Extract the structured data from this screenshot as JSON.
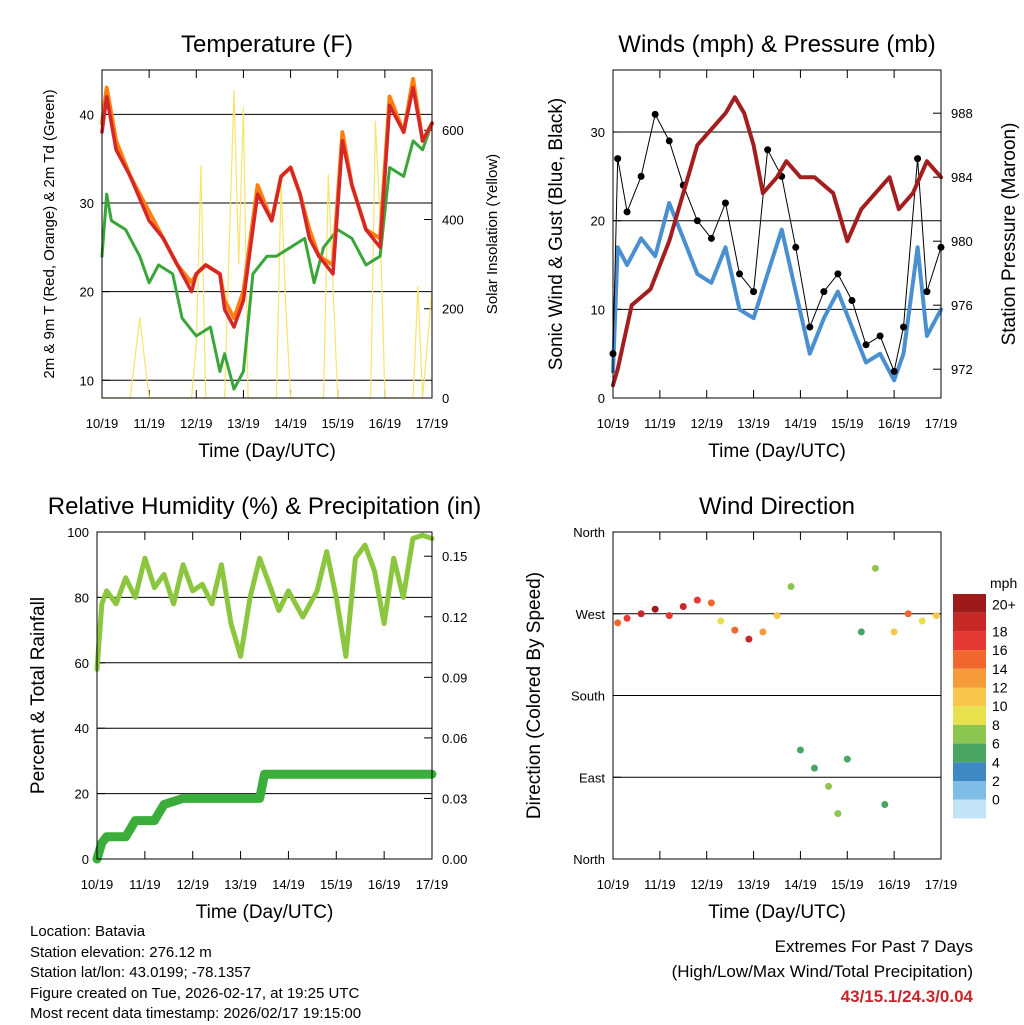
{
  "chart_data": [
    {
      "type": "line",
      "title": "Temperature (F)",
      "xlabel": "Time (Day/UTC)",
      "ylabel": "2m & 9m T (Red, Orange) & 2m Td (Green)",
      "y2label": "Solar Insolation (Yellow)",
      "categories": [
        "10/19",
        "11/19",
        "12/19",
        "13/19",
        "14/19",
        "15/19",
        "16/19",
        "17/19"
      ],
      "ylim": [
        8,
        45
      ],
      "yticks": [
        10,
        20,
        30,
        40
      ],
      "y2lim": [
        0,
        735
      ],
      "y2ticks": [
        0,
        200,
        400,
        600
      ],
      "series": [
        {
          "name": "2m T",
          "color": "#d62728",
          "x": [
            0,
            0.1,
            0.3,
            0.6,
            1.0,
            1.3,
            1.6,
            1.9,
            2.0,
            2.2,
            2.5,
            2.6,
            2.8,
            3.0,
            3.3,
            3.6,
            3.8,
            4.0,
            4.2,
            4.4,
            4.6,
            4.9,
            5.1,
            5.3,
            5.6,
            5.9,
            6.1,
            6.4,
            6.6,
            6.8,
            7.0
          ],
          "values": [
            38,
            42,
            36,
            33,
            28,
            26,
            23,
            20,
            22,
            23,
            22,
            18,
            16,
            19,
            31,
            28,
            33,
            34,
            31,
            26,
            24,
            22,
            37,
            32,
            27,
            25,
            41,
            38,
            43,
            37,
            39
          ]
        },
        {
          "name": "9m T",
          "color": "#ff7f0e",
          "x": [
            0,
            0.1,
            0.3,
            0.6,
            1.0,
            1.3,
            1.6,
            1.9,
            2.0,
            2.2,
            2.5,
            2.6,
            2.8,
            3.0,
            3.3,
            3.6,
            3.8,
            4.0,
            4.2,
            4.4,
            4.6,
            4.9,
            5.1,
            5.3,
            5.6,
            5.9,
            6.1,
            6.4,
            6.6,
            6.8,
            7.0
          ],
          "values": [
            39,
            43,
            37,
            33,
            29,
            26,
            23,
            21,
            22,
            23,
            22,
            19,
            17,
            20,
            32,
            28,
            33,
            34,
            31,
            27,
            24,
            23,
            38,
            32,
            27,
            26,
            42,
            38,
            44,
            37,
            39
          ]
        },
        {
          "name": "2m Td",
          "color": "#3aa63a",
          "x": [
            0,
            0.1,
            0.2,
            0.5,
            0.8,
            1.0,
            1.2,
            1.5,
            1.7,
            2.0,
            2.3,
            2.5,
            2.6,
            2.8,
            3.0,
            3.2,
            3.5,
            3.7,
            4.0,
            4.3,
            4.5,
            4.7,
            5.0,
            5.3,
            5.6,
            5.9,
            6.1,
            6.4,
            6.6,
            6.8,
            7.0
          ],
          "values": [
            24,
            31,
            28,
            27,
            24,
            21,
            23,
            22,
            17,
            15,
            16,
            11,
            13,
            9,
            11,
            22,
            24,
            24,
            25,
            26,
            21,
            25,
            27,
            26,
            23,
            24,
            34,
            33,
            37,
            36,
            39
          ]
        },
        {
          "name": "Solar Insolation",
          "color": "#f7e46b",
          "axis": "y2",
          "x": [
            0,
            0.6,
            0.8,
            1.0,
            1.9,
            2.0,
            2.1,
            2.2,
            2.6,
            2.8,
            2.9,
            3.0,
            3.1,
            3.7,
            3.8,
            3.9,
            4.0,
            4.7,
            4.8,
            4.9,
            5.0,
            5.7,
            5.8,
            5.9,
            6.0,
            6.6,
            6.7,
            6.8,
            7.0
          ],
          "values": [
            0,
            0,
            180,
            0,
            0,
            120,
            520,
            0,
            0,
            690,
            300,
            650,
            0,
            0,
            480,
            200,
            0,
            0,
            500,
            250,
            0,
            0,
            620,
            400,
            0,
            0,
            250,
            0,
            240
          ]
        }
      ]
    },
    {
      "type": "line",
      "title": "Winds (mph) & Pressure (mb)",
      "xlabel": "Time (Day/UTC)",
      "ylabel": "Sonic Wind & Gust (Blue, Black)",
      "y2label": "Station Pressure (Maroon)",
      "categories": [
        "10/19",
        "11/19",
        "12/19",
        "13/19",
        "14/19",
        "15/19",
        "16/19",
        "17/19"
      ],
      "ylim": [
        0,
        37
      ],
      "yticks": [
        0,
        10,
        20,
        30
      ],
      "y2lim": [
        970.2,
        990.7
      ],
      "y2ticks": [
        972,
        976,
        980,
        984,
        988
      ],
      "series": [
        {
          "name": "Sonic Wind",
          "color": "#4a90d0",
          "x": [
            0,
            0.1,
            0.3,
            0.6,
            0.9,
            1.2,
            1.5,
            1.8,
            2.1,
            2.4,
            2.7,
            3.0,
            3.3,
            3.6,
            3.9,
            4.2,
            4.5,
            4.8,
            5.1,
            5.4,
            5.7,
            6.0,
            6.2,
            6.5,
            6.7,
            7.0
          ],
          "values": [
            3,
            17,
            15,
            18,
            16,
            22,
            18,
            14,
            13,
            17,
            10,
            9,
            14,
            19,
            12,
            5,
            9,
            12,
            8,
            4,
            5,
            2,
            5,
            17,
            7,
            10
          ]
        },
        {
          "name": "Gust",
          "color": "#000000",
          "x": [
            0,
            0.1,
            0.3,
            0.6,
            0.9,
            1.2,
            1.5,
            1.8,
            2.1,
            2.4,
            2.7,
            3.0,
            3.3,
            3.6,
            3.9,
            4.2,
            4.5,
            4.8,
            5.1,
            5.4,
            5.7,
            6.0,
            6.2,
            6.5,
            6.7,
            7.0
          ],
          "values": [
            5,
            27,
            21,
            25,
            32,
            29,
            24,
            20,
            18,
            22,
            14,
            12,
            28,
            25,
            17,
            8,
            12,
            14,
            11,
            6,
            7,
            3,
            8,
            27,
            12,
            17
          ]
        },
        {
          "name": "Station Pressure",
          "color": "#a31f1f",
          "axis": "y2",
          "x": [
            0,
            0.1,
            0.4,
            0.8,
            1.2,
            1.5,
            1.8,
            2.1,
            2.4,
            2.6,
            2.8,
            3.0,
            3.2,
            3.5,
            3.7,
            4.0,
            4.3,
            4.7,
            5.0,
            5.3,
            5.6,
            5.9,
            6.1,
            6.4,
            6.7,
            7.0
          ],
          "values": [
            971,
            972,
            976,
            977,
            980,
            983,
            986,
            987,
            988,
            989,
            988,
            986,
            983,
            984,
            985,
            984,
            984,
            983,
            980,
            982,
            983,
            984,
            982,
            983,
            985,
            984
          ]
        }
      ]
    },
    {
      "type": "line",
      "title": "Relative Humidity (%) & Precipitation (in)",
      "xlabel": "Time (Day/UTC)",
      "ylabel": "Percent & Total Rainfall",
      "categories": [
        "10/19",
        "11/19",
        "12/19",
        "13/19",
        "14/19",
        "15/19",
        "16/19",
        "17/19"
      ],
      "ylim": [
        0,
        100
      ],
      "yticks": [
        0,
        20,
        40,
        60,
        80,
        100
      ],
      "y2lim": [
        0,
        0.162
      ],
      "y2ticks": [
        "0.00",
        "0.03",
        "0.06",
        "0.09",
        "0.12",
        "0.15"
      ],
      "series": [
        {
          "name": "Relative Humidity",
          "color": "#8cc63f",
          "x": [
            0,
            0.1,
            0.2,
            0.4,
            0.6,
            0.8,
            1.0,
            1.2,
            1.4,
            1.6,
            1.8,
            2.0,
            2.2,
            2.4,
            2.6,
            2.8,
            3.0,
            3.2,
            3.4,
            3.6,
            3.8,
            4.0,
            4.3,
            4.6,
            4.8,
            5.0,
            5.2,
            5.4,
            5.6,
            5.8,
            6.0,
            6.2,
            6.4,
            6.6,
            6.8,
            7.0
          ],
          "values": [
            58,
            78,
            82,
            78,
            86,
            80,
            92,
            83,
            87,
            78,
            90,
            82,
            84,
            78,
            90,
            72,
            62,
            80,
            92,
            84,
            76,
            82,
            74,
            82,
            94,
            80,
            62,
            92,
            96,
            88,
            72,
            92,
            80,
            98,
            99,
            98
          ]
        },
        {
          "name": "Total Precipitation",
          "color": "#3aad3a",
          "axis": "y2",
          "x": [
            0,
            0.1,
            0.2,
            0.6,
            0.8,
            1.2,
            1.4,
            1.8,
            2.0,
            2.5,
            3.0,
            3.4,
            3.5,
            4.0,
            5.0,
            6.0,
            7.0
          ],
          "values": [
            0.0,
            0.008,
            0.011,
            0.011,
            0.019,
            0.019,
            0.027,
            0.03,
            0.03,
            0.03,
            0.03,
            0.03,
            0.042,
            0.042,
            0.042,
            0.042,
            0.042
          ]
        }
      ]
    },
    {
      "type": "scatter",
      "title": "Wind Direction",
      "xlabel": "Time (Day/UTC)",
      "ylabel": "Direction (Colored By Speed)",
      "categories": [
        "10/19",
        "11/19",
        "12/19",
        "13/19",
        "14/19",
        "15/19",
        "16/19",
        "17/19"
      ],
      "ylim": [
        0,
        360
      ],
      "ytick_labels": [
        "North",
        "East",
        "South",
        "West",
        "North"
      ],
      "ytick_values": [
        0,
        90,
        180,
        270,
        360
      ],
      "colorbar": {
        "title": "mph",
        "labels": [
          "20+",
          "18",
          "16",
          "14",
          "12",
          "10",
          "8",
          "6",
          "4",
          "2",
          "0"
        ],
        "colors": [
          "#9e1a1a",
          "#c62828",
          "#e53935",
          "#f2672e",
          "#f59b3a",
          "#f7c64a",
          "#e8e04c",
          "#8cc650",
          "#4aa564",
          "#3e88c3",
          "#7fbce6",
          "#c3e4f7"
        ]
      },
      "points": [
        {
          "x": 0.1,
          "y": 260,
          "speed": 14
        },
        {
          "x": 0.3,
          "y": 265,
          "speed": 16
        },
        {
          "x": 0.6,
          "y": 270,
          "speed": 18
        },
        {
          "x": 0.9,
          "y": 275,
          "speed": 20
        },
        {
          "x": 1.2,
          "y": 268,
          "speed": 16
        },
        {
          "x": 1.5,
          "y": 278,
          "speed": 18
        },
        {
          "x": 1.8,
          "y": 285,
          "speed": 16
        },
        {
          "x": 2.1,
          "y": 282,
          "speed": 14
        },
        {
          "x": 2.3,
          "y": 262,
          "speed": 8
        },
        {
          "x": 2.6,
          "y": 252,
          "speed": 14
        },
        {
          "x": 2.9,
          "y": 242,
          "speed": 18
        },
        {
          "x": 3.2,
          "y": 250,
          "speed": 12
        },
        {
          "x": 3.5,
          "y": 268,
          "speed": 10
        },
        {
          "x": 3.8,
          "y": 300,
          "speed": 6
        },
        {
          "x": 4.0,
          "y": 120,
          "speed": 4
        },
        {
          "x": 4.3,
          "y": 100,
          "speed": 4
        },
        {
          "x": 4.6,
          "y": 80,
          "speed": 6
        },
        {
          "x": 4.8,
          "y": 50,
          "speed": 6
        },
        {
          "x": 5.0,
          "y": 110,
          "speed": 4
        },
        {
          "x": 5.3,
          "y": 250,
          "speed": 4
        },
        {
          "x": 5.6,
          "y": 320,
          "speed": 6
        },
        {
          "x": 5.8,
          "y": 60,
          "speed": 4
        },
        {
          "x": 6.0,
          "y": 250,
          "speed": 10
        },
        {
          "x": 6.3,
          "y": 270,
          "speed": 14
        },
        {
          "x": 6.6,
          "y": 262,
          "speed": 8
        },
        {
          "x": 6.9,
          "y": 268,
          "speed": 10
        }
      ]
    }
  ],
  "info": {
    "location": "Location: Batavia",
    "elevation": "Station elevation: 276.12 m",
    "latlon": "Station lat/lon: 43.0199; -78.1357",
    "created": "Figure created on Tue, 2026-02-17, at 19:25 UTC",
    "recent": "Most recent data timestamp: 2026/02/17 19:15:00"
  },
  "extremes": {
    "title": "Extremes For Past 7 Days",
    "subtitle": "(High/Low/Max Wind/Total Precipitation)",
    "values": "43/15.1/24.3/0.04"
  }
}
